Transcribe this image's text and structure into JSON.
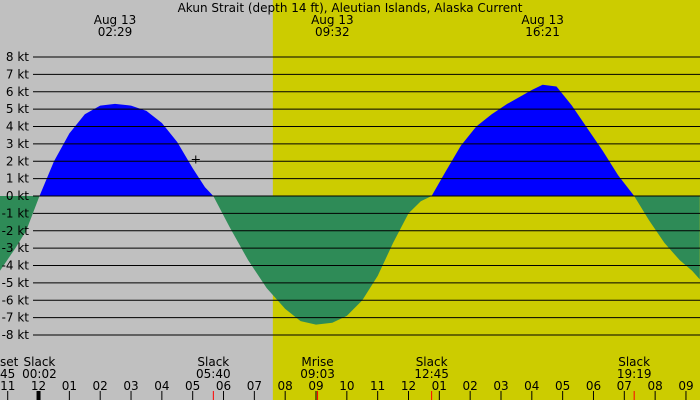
{
  "chart_data": {
    "type": "area",
    "title": "Akun Strait (depth 14 ft), Aleutian Islands, Alaska Current",
    "unit": "kt",
    "ylim": [
      -8.5,
      8.5
    ],
    "y_ticks": [
      8,
      7,
      6,
      5,
      4,
      3,
      2,
      1,
      0,
      -1,
      -2,
      -3,
      -4,
      -5,
      -6,
      -7,
      -8
    ],
    "y_tick_labels": [
      "8 kt",
      "7 kt",
      "6 kt",
      "5 kt",
      "4 kt",
      "3 kt",
      "2 kt",
      "1 kt",
      "0 kt",
      "-1 kt",
      "-2 kt",
      "-3 kt",
      "-4 kt",
      "-5 kt",
      "-6 kt",
      "-7 kt",
      "-8 kt"
    ],
    "grid": true,
    "x_range_hours": [
      -1.25,
      21.45
    ],
    "daylight": {
      "start_hour": 7.6,
      "end_hour": 21.45,
      "night_color": "#c0c0c0",
      "day_color": "#cccc00"
    },
    "flood_color": "#0000ff",
    "ebb_color": "#2e8b57",
    "curve_hours": [
      -1.25,
      -0.75,
      -0.4,
      0.03,
      0.5,
      1.0,
      1.5,
      2.0,
      2.48,
      3.0,
      3.5,
      4.0,
      4.5,
      5.0,
      5.4,
      5.67,
      6.2,
      6.8,
      7.4,
      8.0,
      8.5,
      9.0,
      9.53,
      10.0,
      10.5,
      11.0,
      11.5,
      12.0,
      12.4,
      12.75,
      13.2,
      13.7,
      14.2,
      14.7,
      15.2,
      15.7,
      16.0,
      16.35,
      16.8,
      17.3,
      17.8,
      18.3,
      18.8,
      19.32,
      19.8,
      20.3,
      20.8,
      21.2,
      21.45
    ],
    "curve_values": [
      -4.3,
      -3.0,
      -2.0,
      0.0,
      2.0,
      3.6,
      4.7,
      5.2,
      5.3,
      5.2,
      4.9,
      4.2,
      3.1,
      1.6,
      0.5,
      0.0,
      -1.8,
      -3.7,
      -5.3,
      -6.5,
      -7.2,
      -7.4,
      -7.3,
      -6.9,
      -6.0,
      -4.6,
      -2.7,
      -1.0,
      -0.3,
      0.0,
      1.4,
      2.9,
      4.0,
      4.7,
      5.3,
      5.8,
      6.1,
      6.4,
      6.3,
      5.2,
      3.9,
      2.6,
      1.2,
      0.0,
      -1.4,
      -2.7,
      -3.7,
      -4.3,
      -4.8
    ],
    "top_labels": [
      {
        "date": "Aug 13",
        "time": "02:29",
        "hour": 2.48
      },
      {
        "date": "Aug 13",
        "time": "09:32",
        "hour": 9.53
      },
      {
        "date": "Aug 13",
        "time": "16:21",
        "hour": 16.35
      }
    ],
    "bottom_events": [
      {
        "name": "Slack",
        "time": "00:02",
        "hour": 0.03
      },
      {
        "name": "Slack",
        "time": "05:40",
        "hour": 5.67
      },
      {
        "name": "Mrise",
        "time": "09:03",
        "hour": 9.05
      },
      {
        "name": "Slack",
        "time": "12:45",
        "hour": 12.75
      },
      {
        "name": "Slack",
        "time": "19:19",
        "hour": 19.32
      }
    ],
    "edge_event": {
      "name_fragment": "set",
      "time_fragment": "45"
    },
    "hour_tick_labels": [
      "11",
      "12",
      "01",
      "02",
      "03",
      "04",
      "05",
      "06",
      "07",
      "08",
      "09",
      "10",
      "11",
      "12",
      "01",
      "02",
      "03",
      "04",
      "05",
      "06",
      "07",
      "08",
      "09"
    ],
    "hour_tick_hours": [
      -1,
      0,
      1,
      2,
      3,
      4,
      5,
      6,
      7,
      8,
      9,
      10,
      11,
      12,
      13,
      14,
      15,
      16,
      17,
      18,
      19,
      20,
      21
    ],
    "marker_hours": [
      0.03,
      5.67,
      9.05,
      12.75,
      19.32
    ],
    "cursor": {
      "hour": 5.1,
      "value": 2.1
    }
  }
}
